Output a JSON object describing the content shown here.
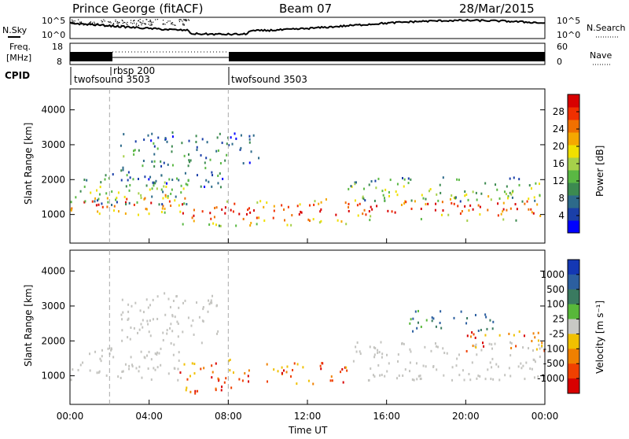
{
  "header": {
    "radar": "Prince George (fitACF)",
    "beam": "Beam 07",
    "date": "28/Mar/2015"
  },
  "noise_panel": {
    "left_label": "N.Sky",
    "left_ticks": [
      "10^5",
      "10^0"
    ],
    "right_ticks": [
      "10^5",
      "10^0"
    ],
    "right_label": "N.Search"
  },
  "freq_panel": {
    "left_label_1": "Freq.",
    "left_label_2": "[MHz]",
    "left_ticks": [
      "18",
      "8"
    ],
    "right_ticks": [
      "60",
      "0"
    ],
    "right_label": "Nave"
  },
  "cpid": {
    "label": "CPID",
    "programs": [
      {
        "name": "twofsound 3503",
        "start_hour": 0
      },
      {
        "name": "rbsp 200",
        "start_hour": 2
      },
      {
        "name": "twofsound 3503",
        "start_hour": 8
      }
    ]
  },
  "chart_data": [
    {
      "type": "heatmap",
      "name": "power",
      "ylabel": "Slant Range [km]",
      "ylim": [
        180,
        4600
      ],
      "y_ticks": [
        1000,
        2000,
        3000,
        4000
      ],
      "xlim": [
        0,
        24
      ],
      "colorbar": {
        "label": "Power [dB]",
        "range": [
          0,
          32
        ],
        "ticks": [
          "4",
          "8",
          "12",
          "16",
          "20",
          "24",
          "28"
        ],
        "colors": [
          "#0000ff",
          "#1a3fa8",
          "#2d6a8a",
          "#3c8a50",
          "#5ab843",
          "#a6d04a",
          "#f0e000",
          "#f5a800",
          "#f07000",
          "#f03000",
          "#d80000"
        ]
      },
      "scatter_regions": [
        {
          "t0": 0.0,
          "t1": 5.8,
          "r0": 950,
          "r1": 1750,
          "lvl": 0.75
        },
        {
          "t0": 0.0,
          "t1": 6.0,
          "r0": 1300,
          "r1": 2200,
          "lvl": 0.4
        },
        {
          "t0": 2.5,
          "t1": 8.0,
          "r0": 1800,
          "r1": 3400,
          "lvl": 0.3
        },
        {
          "t0": 5.5,
          "t1": 7.5,
          "r0": 700,
          "r1": 1400,
          "lvl": 0.85
        },
        {
          "t0": 7.5,
          "t1": 14.5,
          "r0": 700,
          "r1": 1500,
          "lvl": 0.9
        },
        {
          "t0": 14.0,
          "t1": 24.0,
          "r0": 850,
          "r1": 1600,
          "lvl": 0.85
        },
        {
          "t0": 14.0,
          "t1": 24.0,
          "r0": 1400,
          "r1": 2100,
          "lvl": 0.45
        },
        {
          "t0": 8.0,
          "t1": 9.5,
          "r0": 2500,
          "r1": 3400,
          "lvl": 0.2
        }
      ]
    },
    {
      "type": "heatmap",
      "name": "velocity",
      "ylabel": "Slant Range [km]",
      "ylim": [
        180,
        4600
      ],
      "y_ticks": [
        1000,
        2000,
        3000,
        4000
      ],
      "xlim": [
        0,
        24
      ],
      "x_ticks": [
        "00:00",
        "04:00",
        "08:00",
        "12:00",
        "16:00",
        "20:00",
        "00:00"
      ],
      "xlabel": "Time UT",
      "colorbar": {
        "label": "Velocity [m s⁻¹]",
        "ticks": [
          "1000",
          "500",
          "100",
          "25",
          "-25",
          "-100",
          "-500",
          "-1000"
        ],
        "colors": [
          "#1438b4",
          "#2c5fa0",
          "#3a7a60",
          "#58b83a",
          "#c8c8c4",
          "#f0c000",
          "#f08000",
          "#f04000",
          "#d80000"
        ]
      },
      "scatter_regions": [
        {
          "t0": 0.0,
          "t1": 5.5,
          "r0": 900,
          "r1": 1900,
          "lvl": "ground"
        },
        {
          "t0": 14.0,
          "t1": 24.0,
          "r0": 900,
          "r1": 2000,
          "lvl": "ground"
        },
        {
          "t0": 2.5,
          "t1": 7.5,
          "r0": 1900,
          "r1": 3400,
          "lvl": "ground"
        },
        {
          "t0": 5.5,
          "t1": 8.5,
          "r0": 500,
          "r1": 1500,
          "lvl": "neg"
        },
        {
          "t0": 8.5,
          "t1": 14.0,
          "r0": 800,
          "r1": 1400,
          "lvl": "neg"
        },
        {
          "t0": 20.0,
          "t1": 24.0,
          "r0": 1700,
          "r1": 2300,
          "lvl": "neg"
        },
        {
          "t0": 17.0,
          "t1": 21.5,
          "r0": 2300,
          "r1": 2900,
          "lvl": "pos"
        }
      ]
    }
  ],
  "colors": {
    "ground_scatter": "#c4c4c0",
    "vline": "#aaaaaa"
  }
}
